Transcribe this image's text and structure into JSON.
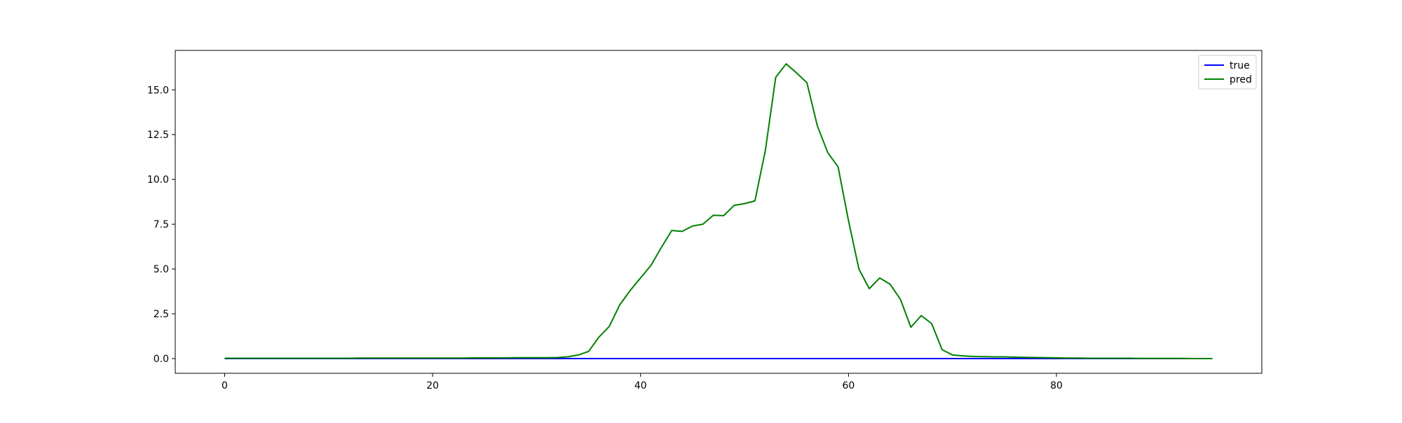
{
  "chart_data": {
    "type": "line",
    "title": "",
    "xlabel": "",
    "ylabel": "",
    "xlim": [
      -4.75,
      99.75
    ],
    "ylim": [
      -0.82,
      17.2
    ],
    "x_ticks": [
      0,
      20,
      40,
      60,
      80
    ],
    "y_ticks": [
      0.0,
      2.5,
      5.0,
      7.5,
      10.0,
      12.5,
      15.0
    ],
    "x_tick_labels": [
      "0",
      "20",
      "40",
      "60",
      "80"
    ],
    "y_tick_labels": [
      "0.0",
      "2.5",
      "5.0",
      "7.5",
      "10.0",
      "12.5",
      "15.0"
    ],
    "legend": {
      "placement": "top-right",
      "entries": [
        {
          "label": "true",
          "color": "#0000ff"
        },
        {
          "label": "pred",
          "color": "#008000"
        }
      ]
    },
    "grid": false,
    "series": [
      {
        "name": "true",
        "color": "#0000ff",
        "x_start": 0,
        "values": [
          0,
          0,
          0,
          0,
          0,
          0,
          0,
          0,
          0,
          0,
          0,
          0,
          0,
          0,
          0,
          0,
          0,
          0,
          0,
          0,
          0,
          0,
          0,
          0,
          0,
          0,
          0,
          0,
          0,
          0,
          0,
          0,
          0,
          0,
          0,
          0,
          0,
          0,
          0,
          0,
          0,
          0,
          0,
          0,
          0,
          0,
          0,
          0,
          0,
          0,
          0,
          0,
          0,
          0,
          0,
          0,
          0,
          0,
          0,
          0,
          0,
          0,
          0,
          0,
          0,
          0,
          0,
          0,
          0,
          0,
          0,
          0,
          0,
          0,
          0,
          0,
          0,
          0,
          0,
          0,
          0,
          0,
          0,
          0,
          0,
          0,
          0,
          0,
          0,
          0,
          0,
          0,
          0,
          0,
          0,
          0
        ]
      },
      {
        "name": "pred",
        "color": "#008000",
        "x_start": 0,
        "values": [
          0.02,
          0.02,
          0.02,
          0.02,
          0.02,
          0.02,
          0.02,
          0.02,
          0.02,
          0.02,
          0.02,
          0.02,
          0.02,
          0.03,
          0.03,
          0.03,
          0.03,
          0.03,
          0.03,
          0.03,
          0.03,
          0.03,
          0.03,
          0.03,
          0.04,
          0.04,
          0.04,
          0.04,
          0.05,
          0.05,
          0.05,
          0.05,
          0.06,
          0.1,
          0.2,
          0.4,
          1.2,
          1.8,
          3.0,
          3.8,
          4.5,
          5.2,
          6.2,
          7.15,
          7.1,
          7.4,
          7.5,
          8.0,
          7.98,
          8.55,
          8.65,
          8.8,
          11.6,
          15.7,
          16.45,
          15.95,
          15.4,
          13.0,
          11.5,
          10.7,
          7.7,
          5.0,
          3.9,
          4.5,
          4.15,
          3.3,
          1.75,
          2.4,
          1.95,
          0.5,
          0.2,
          0.15,
          0.12,
          0.11,
          0.1,
          0.1,
          0.08,
          0.07,
          0.06,
          0.05,
          0.04,
          0.03,
          0.03,
          0.02,
          0.02,
          0.02,
          0.02,
          0.02,
          0.01,
          0.01,
          0.01,
          0.01,
          0.01,
          0.0,
          0.0,
          0.0
        ]
      }
    ]
  }
}
